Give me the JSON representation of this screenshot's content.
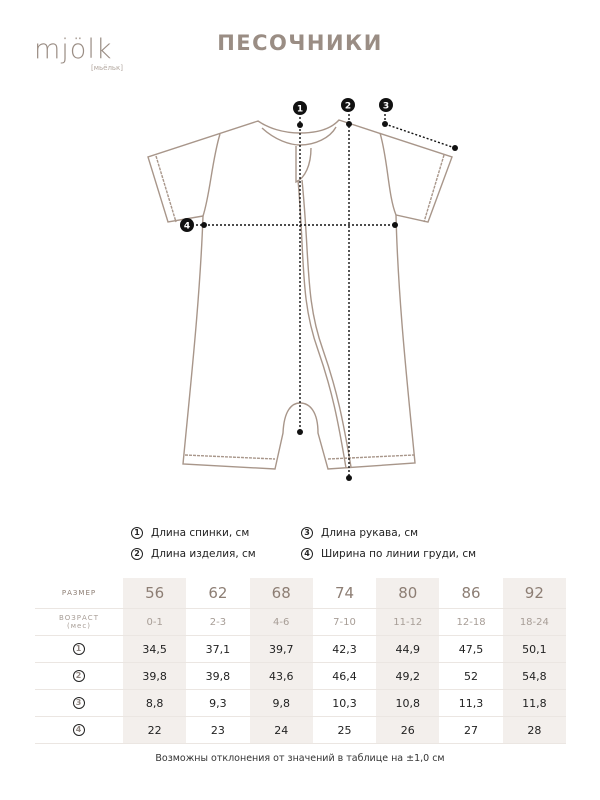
{
  "brand": {
    "logo": "mjölk",
    "logo_sub": "[мьёльк]"
  },
  "title": "ПЕСОЧНИКИ",
  "markers": [
    "1",
    "2",
    "3",
    "4"
  ],
  "legend": [
    {
      "num": "1",
      "label": "Длина спинки, см"
    },
    {
      "num": "2",
      "label": "Длина изделия, см"
    },
    {
      "num": "3",
      "label": "Длина рукава, см"
    },
    {
      "num": "4",
      "label": "Ширина по линии груди, см"
    }
  ],
  "table": {
    "size_label": "РАЗМЕР",
    "age_label": "ВОЗРАСТ",
    "age_unit": "(мес)",
    "sizes": [
      "56",
      "62",
      "68",
      "74",
      "80",
      "86",
      "92"
    ],
    "ages": [
      "0-1",
      "2-3",
      "4-6",
      "7-10",
      "11-12",
      "12-18",
      "18-24"
    ],
    "rows": [
      {
        "num": "1",
        "values": [
          "34,5",
          "37,1",
          "39,7",
          "42,3",
          "44,9",
          "47,5",
          "50,1"
        ]
      },
      {
        "num": "2",
        "values": [
          "39,8",
          "39,8",
          "43,6",
          "46,4",
          "49,2",
          "52",
          "54,8"
        ]
      },
      {
        "num": "3",
        "values": [
          "8,8",
          "9,3",
          "9,8",
          "10,3",
          "10,8",
          "11,3",
          "11,8"
        ]
      },
      {
        "num": "4",
        "values": [
          "22",
          "23",
          "24",
          "25",
          "26",
          "27",
          "28"
        ]
      }
    ]
  },
  "note": "Возможны отклонения от значений в таблице на ±1,0 см",
  "colors": {
    "brand": "#9a8d84",
    "outline": "#a8968a",
    "shade": "#f3efec"
  }
}
